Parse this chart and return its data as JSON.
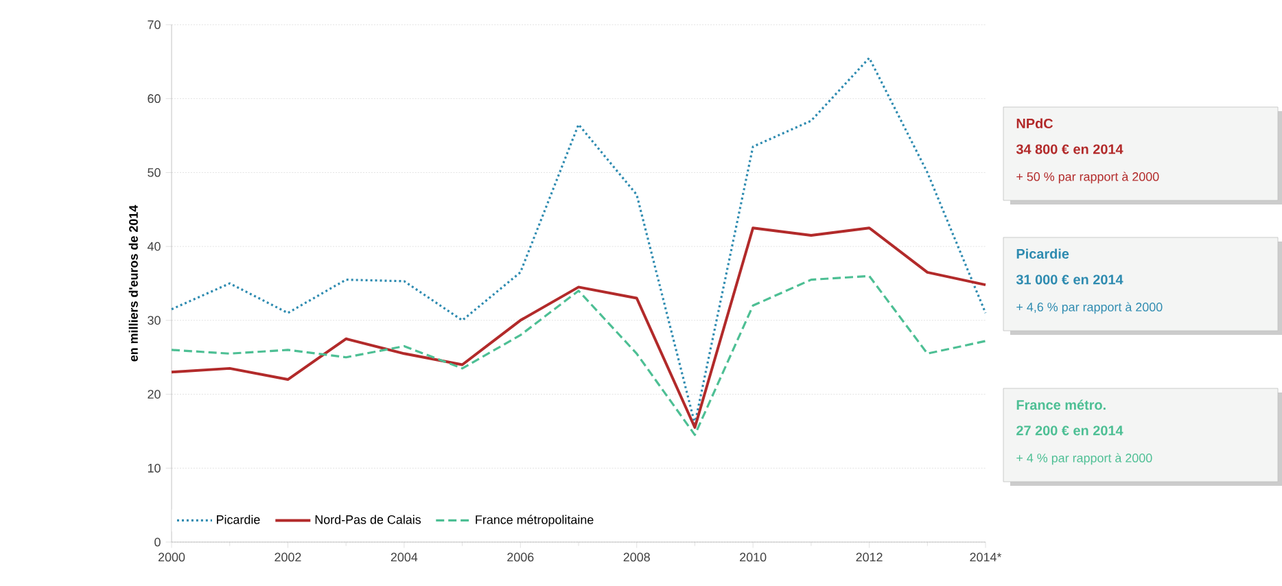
{
  "chart_data": {
    "type": "line",
    "ylabel": "en milliers d'euros de 2014",
    "x": [
      2000,
      2001,
      2002,
      2003,
      2004,
      2005,
      2006,
      2007,
      2008,
      2009,
      2010,
      2011,
      2012,
      2013,
      2014
    ],
    "series": [
      {
        "name": "Picardie",
        "color": "#2e8bb0",
        "line_style": "dotted",
        "values": [
          31.5,
          35,
          31,
          35.5,
          35.3,
          30,
          36.5,
          56.5,
          47,
          16,
          53.5,
          57,
          65.5,
          50,
          31
        ]
      },
      {
        "name": "Nord-Pas de Calais",
        "color": "#b22a2a",
        "line_style": "solid",
        "values": [
          23,
          23.5,
          22,
          27.5,
          25.5,
          24,
          30,
          34.5,
          33,
          15.5,
          42.5,
          41.5,
          42.5,
          36.5,
          34.8
        ]
      },
      {
        "name": "France métropolitaine",
        "color": "#4dbf94",
        "line_style": "dashed",
        "values": [
          26,
          25.5,
          26,
          25,
          26.5,
          23.5,
          28,
          34,
          25.5,
          14.5,
          32,
          35.5,
          36,
          25.5,
          27.2
        ]
      }
    ],
    "xlim": [
      2000,
      2014
    ],
    "ylim": [
      0,
      70
    ],
    "xticks": [
      2000,
      2002,
      2004,
      2006,
      2008,
      2010,
      2012,
      {
        "value": 2014,
        "label": "2014*"
      }
    ],
    "yticks": [
      0,
      10,
      20,
      30,
      40,
      50,
      60,
      70
    ],
    "grid": "y",
    "legend": "bottom",
    "marker": "none",
    "annotations": [
      "NPdC",
      "34 800 € en 2014",
      "+ 50 % par rapport à 2000",
      "Picardie",
      "31 000 € en 2014",
      "+ 4,6 % par rapport à 2000",
      "France métro.",
      "27 200 € en 2014",
      "+ 4 % par rapport à 2000"
    ]
  }
}
